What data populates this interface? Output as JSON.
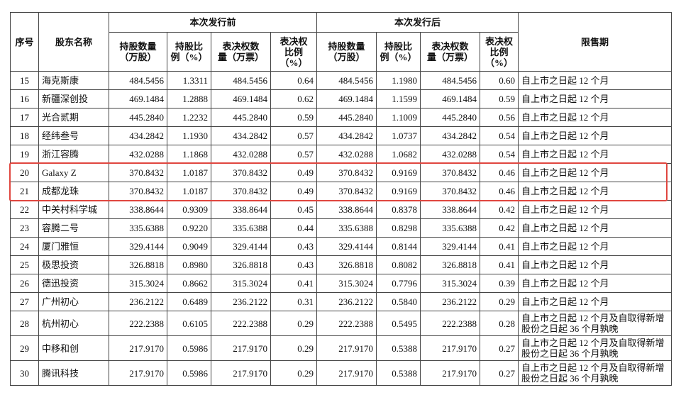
{
  "table": {
    "header": {
      "seq": "序号",
      "name": "股东名称",
      "before": "本次发行前",
      "after": "本次发行后",
      "lockup": "限售期",
      "before_cols": [
        "持股数量\n（万股）",
        "持股比\n例（%）",
        "表决权数\n量（万票）",
        "表决权\n比例\n（%）"
      ],
      "after_cols": [
        "持股数量\n（万股）",
        "持股比\n例（%）",
        "表决权数\n量（万票）",
        "表决权\n比例\n（%）"
      ]
    },
    "rows": [
      [
        "15",
        "海克斯康",
        "484.5456",
        "1.3311",
        "484.5456",
        "0.64",
        "484.5456",
        "1.1980",
        "484.5456",
        "0.60",
        "自上市之日起 12 个月"
      ],
      [
        "16",
        "新疆深创投",
        "469.1484",
        "1.2888",
        "469.1484",
        "0.62",
        "469.1484",
        "1.1599",
        "469.1484",
        "0.59",
        "自上市之日起 12 个月"
      ],
      [
        "17",
        "光合贰期",
        "445.2840",
        "1.2232",
        "445.2840",
        "0.59",
        "445.2840",
        "1.1009",
        "445.2840",
        "0.56",
        "自上市之日起 12 个月"
      ],
      [
        "18",
        "经纬叁号",
        "434.2842",
        "1.1930",
        "434.2842",
        "0.57",
        "434.2842",
        "1.0737",
        "434.2842",
        "0.54",
        "自上市之日起 12 个月"
      ],
      [
        "19",
        "浙江容腾",
        "432.0288",
        "1.1868",
        "432.0288",
        "0.57",
        "432.0288",
        "1.0682",
        "432.0288",
        "0.54",
        "自上市之日起 12 个月"
      ],
      [
        "20",
        "Galaxy Z",
        "370.8432",
        "1.0187",
        "370.8432",
        "0.49",
        "370.8432",
        "0.9169",
        "370.8432",
        "0.46",
        "自上市之日起 12 个月"
      ],
      [
        "21",
        "成都龙珠",
        "370.8432",
        "1.0187",
        "370.8432",
        "0.49",
        "370.8432",
        "0.9169",
        "370.8432",
        "0.46",
        "自上市之日起 12 个月"
      ],
      [
        "22",
        "中关村科学城",
        "338.8644",
        "0.9309",
        "338.8644",
        "0.45",
        "338.8644",
        "0.8378",
        "338.8644",
        "0.42",
        "自上市之日起 12 个月"
      ],
      [
        "23",
        "容腾二号",
        "335.6388",
        "0.9220",
        "335.6388",
        "0.44",
        "335.6388",
        "0.8298",
        "335.6388",
        "0.42",
        "自上市之日起 12 个月"
      ],
      [
        "24",
        "厦门雅恒",
        "329.4144",
        "0.9049",
        "329.4144",
        "0.43",
        "329.4144",
        "0.8144",
        "329.4144",
        "0.41",
        "自上市之日起 12 个月"
      ],
      [
        "25",
        "极思投资",
        "326.8818",
        "0.8980",
        "326.8818",
        "0.43",
        "326.8818",
        "0.8082",
        "326.8818",
        "0.41",
        "自上市之日起 12 个月"
      ],
      [
        "26",
        "德迅投资",
        "315.3024",
        "0.8662",
        "315.3024",
        "0.41",
        "315.3024",
        "0.7796",
        "315.3024",
        "0.39",
        "自上市之日起 12 个月"
      ],
      [
        "27",
        "广州初心",
        "236.2122",
        "0.6489",
        "236.2122",
        "0.31",
        "236.2122",
        "0.5840",
        "236.2122",
        "0.29",
        "自上市之日起 12 个月"
      ],
      [
        "28",
        "杭州初心",
        "222.2388",
        "0.6105",
        "222.2388",
        "0.29",
        "222.2388",
        "0.5495",
        "222.2388",
        "0.28",
        "自上市之日起 12 个月及自取得新增股份之日起 36 个月孰晚"
      ],
      [
        "29",
        "中移和创",
        "217.9170",
        "0.5986",
        "217.9170",
        "0.29",
        "217.9170",
        "0.5388",
        "217.9170",
        "0.27",
        "自上市之日起 12 个月及自取得新增股份之日起 36 个月孰晚"
      ],
      [
        "30",
        "腾讯科技",
        "217.9170",
        "0.5986",
        "217.9170",
        "0.29",
        "217.9170",
        "0.5388",
        "217.9170",
        "0.27",
        "自上市之日起 12 个月及自取得新增股份之日起 36 个月孰晚"
      ]
    ]
  }
}
